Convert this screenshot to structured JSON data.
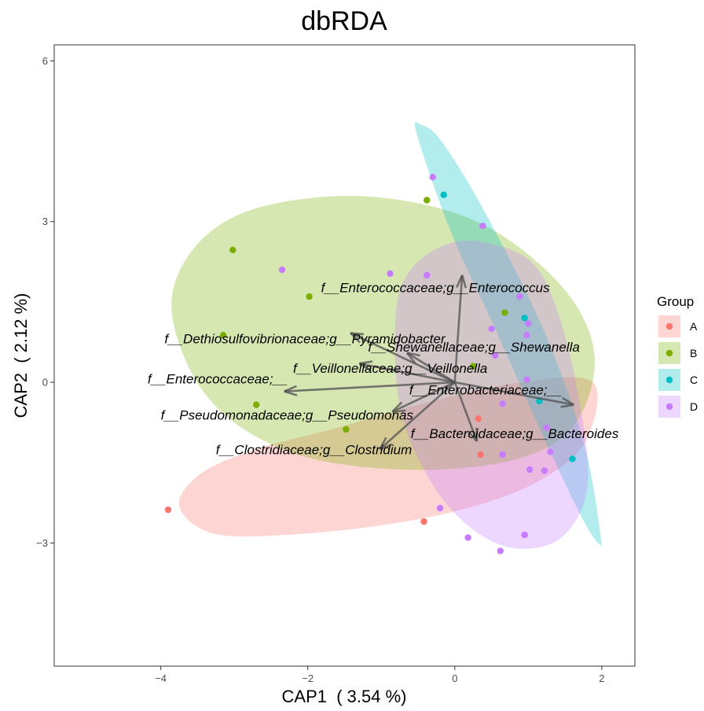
{
  "chart_data": {
    "type": "scatter",
    "title": "dbRDA",
    "xlabel": "CAP1  ( 3.54 %)",
    "ylabel": "CAP2  ( 2.12 %)",
    "xlim": [
      -5.45,
      2.45
    ],
    "ylim": [
      -5.3,
      6.3
    ],
    "x_ticks": [
      -4,
      -2,
      0,
      2
    ],
    "x_tick_labels": [
      "−4",
      "−2",
      "0",
      "2"
    ],
    "y_ticks": [
      -3,
      0,
      3,
      6
    ],
    "y_tick_labels": [
      "−3",
      "0",
      "3",
      "6"
    ],
    "grid": false,
    "legend": {
      "title": "Group",
      "position": "right",
      "entries": [
        {
          "label": "A",
          "color": "#F8766D"
        },
        {
          "label": "B",
          "color": "#7CAE00"
        },
        {
          "label": "C",
          "color": "#00BFC4"
        },
        {
          "label": "D",
          "color": "#C77CFF"
        }
      ]
    },
    "series": [
      {
        "name": "A",
        "color": "#F8766D",
        "points": [
          [
            -3.9,
            -2.38
          ],
          [
            -0.42,
            -2.6
          ],
          [
            0.35,
            -1.35
          ],
          [
            0.32,
            -0.68
          ]
        ]
      },
      {
        "name": "B",
        "color": "#7CAE00",
        "points": [
          [
            -3.02,
            2.47
          ],
          [
            -1.98,
            1.6
          ],
          [
            -3.15,
            0.88
          ],
          [
            -2.7,
            -0.42
          ],
          [
            -1.48,
            -0.88
          ],
          [
            -0.38,
            3.4
          ],
          [
            0.25,
            0.3
          ],
          [
            0.68,
            1.3
          ]
        ]
      },
      {
        "name": "C",
        "color": "#00BFC4",
        "points": [
          [
            -0.15,
            3.5
          ],
          [
            0.95,
            1.2
          ],
          [
            1.15,
            -0.35
          ],
          [
            1.6,
            -1.43
          ]
        ]
      },
      {
        "name": "D",
        "color": "#C77CFF",
        "points": [
          [
            -0.3,
            3.83
          ],
          [
            0.38,
            2.92
          ],
          [
            -2.35,
            2.1
          ],
          [
            -0.88,
            2.03
          ],
          [
            -0.38,
            2.0
          ],
          [
            0.88,
            1.6
          ],
          [
            1.0,
            1.1
          ],
          [
            0.5,
            1.0
          ],
          [
            0.98,
            0.88
          ],
          [
            0.55,
            0.5
          ],
          [
            0.98,
            0.05
          ],
          [
            0.65,
            -0.4
          ],
          [
            1.25,
            -0.85
          ],
          [
            1.3,
            -1.3
          ],
          [
            0.65,
            -1.35
          ],
          [
            -0.2,
            -2.35
          ],
          [
            1.02,
            -1.63
          ],
          [
            1.22,
            -1.65
          ],
          [
            0.18,
            -2.9
          ],
          [
            0.95,
            -2.85
          ],
          [
            0.62,
            -3.15
          ]
        ]
      }
    ],
    "ellipses": [
      {
        "group": "A",
        "color": "#F8766D",
        "path": [
          [
            -3.75,
            -2.3
          ],
          [
            -3.45,
            -1.7
          ],
          [
            -2.7,
            -1.25
          ],
          [
            -1.6,
            -0.85
          ],
          [
            -0.3,
            -0.35
          ],
          [
            0.9,
            0.0
          ],
          [
            1.88,
            0.0
          ],
          [
            1.78,
            -1.1
          ],
          [
            1.2,
            -1.8
          ],
          [
            0.3,
            -2.3
          ],
          [
            -0.9,
            -2.65
          ],
          [
            -2.3,
            -2.85
          ],
          [
            -3.3,
            -2.82
          ],
          [
            -3.75,
            -2.3
          ]
        ]
      },
      {
        "group": "B",
        "color": "#7CAE00",
        "path": [
          [
            -3.85,
            1.3
          ],
          [
            -3.55,
            2.5
          ],
          [
            -2.7,
            3.25
          ],
          [
            -1.2,
            3.47
          ],
          [
            0.3,
            3.0
          ],
          [
            1.45,
            1.8
          ],
          [
            1.9,
            0.5
          ],
          [
            1.62,
            -0.8
          ],
          [
            0.8,
            -1.45
          ],
          [
            -0.7,
            -1.63
          ],
          [
            -2.25,
            -1.3
          ],
          [
            -3.35,
            -0.3
          ],
          [
            -3.85,
            1.3
          ]
        ]
      },
      {
        "group": "C",
        "color": "#00BFC4",
        "path": [
          [
            -0.52,
            4.65
          ],
          [
            -0.45,
            4.8
          ],
          [
            -0.18,
            4.5
          ],
          [
            0.4,
            3.2
          ],
          [
            1.2,
            1.0
          ],
          [
            1.75,
            -1.1
          ],
          [
            1.98,
            -2.82
          ],
          [
            1.95,
            -3.0
          ],
          [
            1.72,
            -2.5
          ],
          [
            1.2,
            -1.0
          ],
          [
            0.55,
            1.0
          ],
          [
            -0.05,
            2.8
          ],
          [
            -0.52,
            4.65
          ]
        ]
      },
      {
        "group": "D",
        "color": "#C77CFF",
        "path": [
          [
            -0.8,
            1.3
          ],
          [
            -0.6,
            2.1
          ],
          [
            -0.1,
            2.58
          ],
          [
            0.45,
            2.6
          ],
          [
            1.08,
            2.2
          ],
          [
            1.45,
            1.1
          ],
          [
            1.72,
            -0.55
          ],
          [
            1.8,
            -2.0
          ],
          [
            1.45,
            -2.9
          ],
          [
            0.82,
            -3.1
          ],
          [
            0.2,
            -2.7
          ],
          [
            -0.35,
            -1.8
          ],
          [
            -0.75,
            -0.45
          ],
          [
            -0.8,
            1.3
          ]
        ]
      }
    ],
    "arrows": [
      {
        "label": "f__Enterococcaceae;g__Enterococcus",
        "x": 0.1,
        "y": 2.0
      },
      {
        "label": "f__Dethiosulfovibrionaceae;g__Pyramidobacter",
        "x": -1.42,
        "y": 0.92
      },
      {
        "label": "f__Shewanellaceae;g__Shewanella",
        "x": -0.65,
        "y": 0.55
      },
      {
        "label": "f__Veillonellaceae;g__Veillonella",
        "x": -1.3,
        "y": 0.35
      },
      {
        "label": "f__Enterococcaceae;__",
        "x": -2.32,
        "y": -0.17
      },
      {
        "label": "f__Enterobacteriaceae;__",
        "x": 1.62,
        "y": -0.42
      },
      {
        "label": "f__Pseudomonadaceae;g__Pseudomonas",
        "x": -0.85,
        "y": -0.55
      },
      {
        "label": "f__Bacteroidaceae;g__Bacteroides",
        "x": 0.3,
        "y": -1.1
      },
      {
        "label": "f__Clostridiaceae;g__Clostridium",
        "x": -1.02,
        "y": -1.25
      }
    ],
    "arrow_labels": [
      {
        "text": "f__Enterococcaceae;g__Enterococcus",
        "x": -1.82,
        "y": 1.68,
        "anchor": "start"
      },
      {
        "text": "f__Dethiosulfovibrionaceae;g__Pyramidobacter",
        "x": -0.13,
        "y": 0.73,
        "anchor": "end"
      },
      {
        "text": "f__Shewanellaceae;g__Shewanella",
        "x": -1.18,
        "y": 0.57,
        "anchor": "start"
      },
      {
        "text": "f__Veillonellaceae;g__Veillonella",
        "x": -2.2,
        "y": 0.18,
        "anchor": "start"
      },
      {
        "text": "f__Enterococcaceae;__",
        "x": -2.27,
        "y": -0.02,
        "anchor": "end"
      },
      {
        "text": "f__Enterobacteriaceae;__",
        "x": -0.62,
        "y": -0.23,
        "anchor": "start"
      },
      {
        "text": "f__Pseudomonadaceae;g__Pseudomonas",
        "x": -4.0,
        "y": -0.7,
        "anchor": "start"
      },
      {
        "text": "f__Bacteroidaceae;g__Bacteroides",
        "x": -0.6,
        "y": -1.04,
        "anchor": "start"
      },
      {
        "text": "f__Clostridiaceae;g__Clostridium",
        "x": -3.25,
        "y": -1.34,
        "anchor": "start"
      }
    ]
  }
}
